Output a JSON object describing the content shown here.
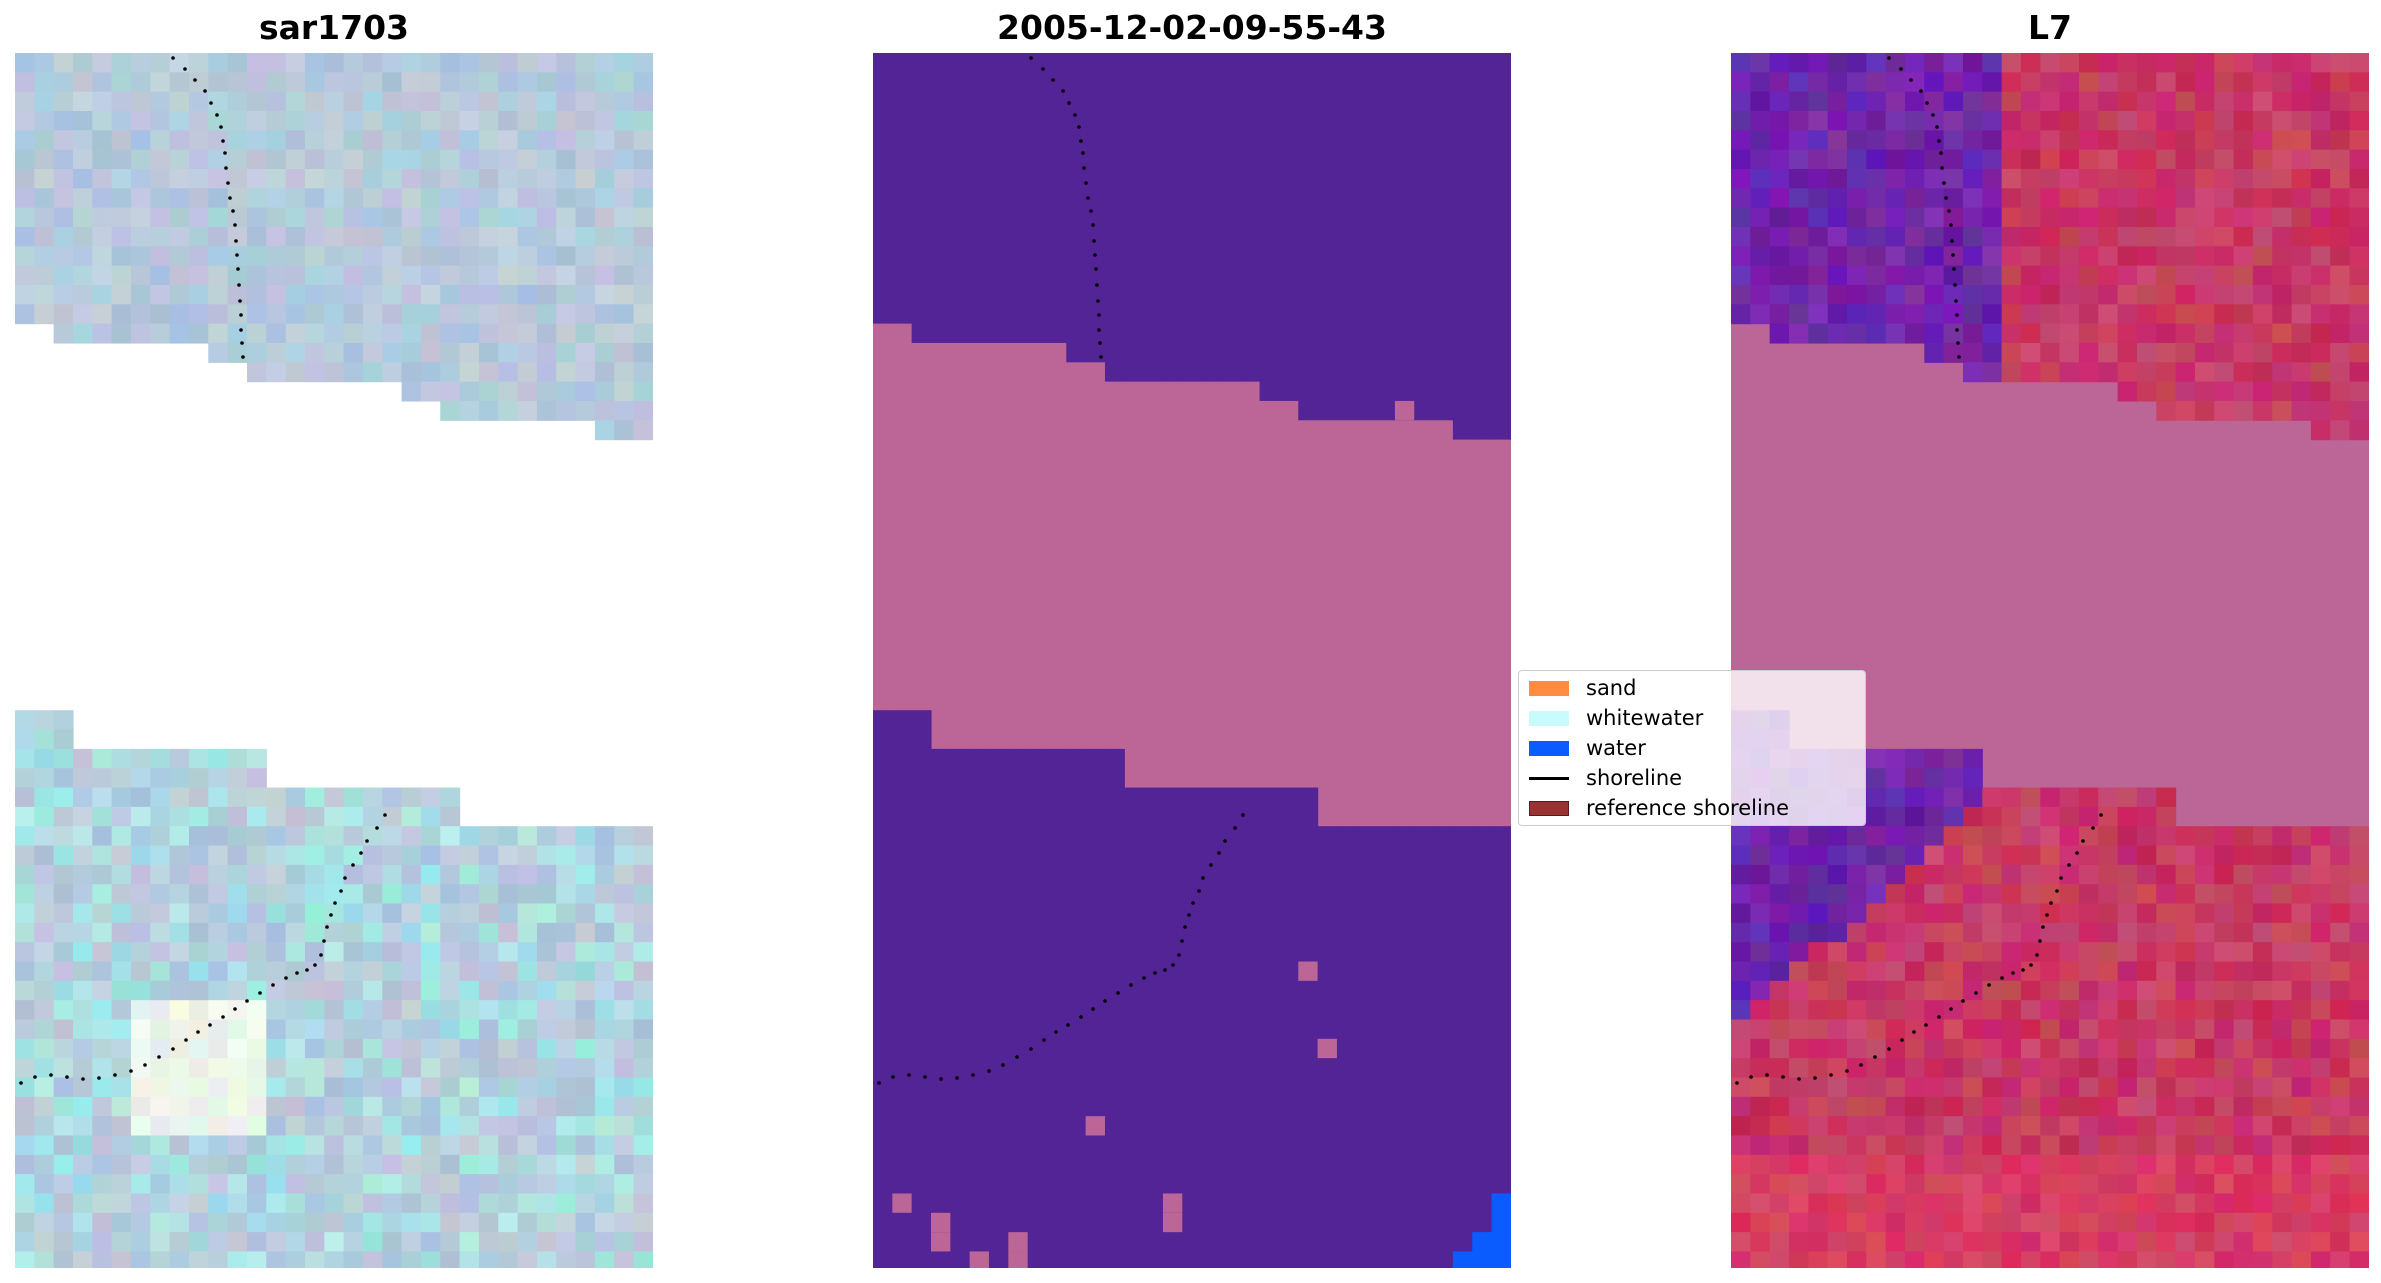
{
  "panels": [
    {
      "title": "sar1703",
      "image": "sar1703 RGB satellite image with shoreline points"
    },
    {
      "title": "2005-12-02-09-55-43",
      "image": "classified image with shoreline points"
    },
    {
      "title": "L7",
      "image": "L7 index image with shoreline points"
    }
  ],
  "legend": {
    "items": [
      {
        "label": "sand",
        "color": "#ff8c42",
        "kind": "patch"
      },
      {
        "label": "whitewater",
        "color": "#c8fcfc",
        "kind": "patch"
      },
      {
        "label": "water",
        "color": "#0a5cff",
        "kind": "patch"
      },
      {
        "label": "shoreline",
        "color": "#000000",
        "kind": "line"
      },
      {
        "label": "reference shoreline",
        "color": "#993333",
        "kind": "patch"
      }
    ]
  },
  "colors": {
    "class_background": "#532496",
    "cloud_mask": "#bc6597",
    "water_patch": "#0a5cff",
    "l7_purple": "#7b23a5",
    "l7_red": "#c52d63"
  }
}
